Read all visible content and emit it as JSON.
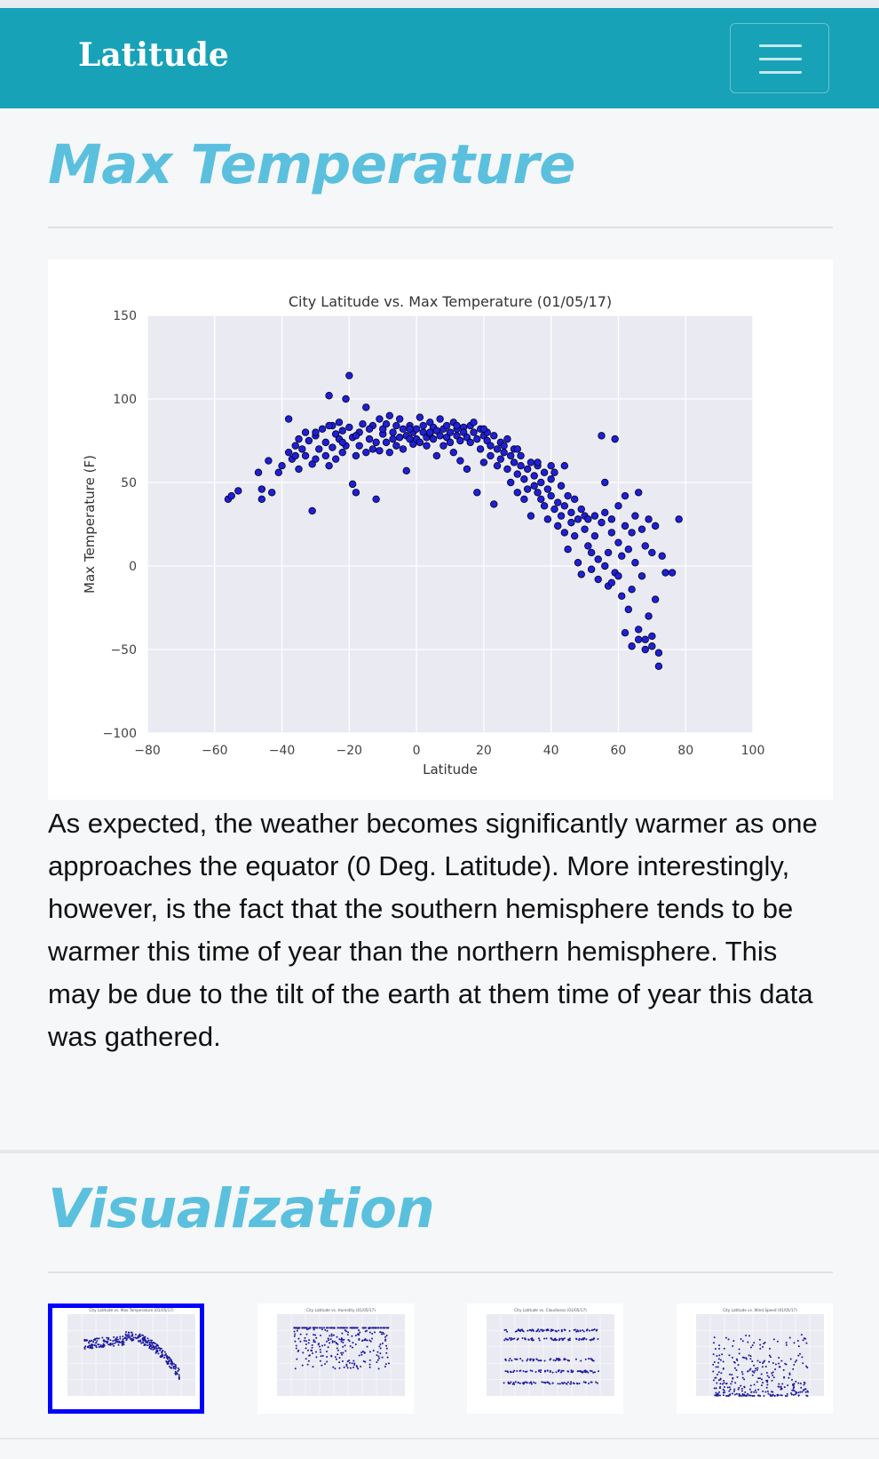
{
  "navbar": {
    "brand": "Latitude",
    "menu_icon": "hamburger-menu-icon"
  },
  "section1": {
    "title": "Max Temperature",
    "description": "As expected, the weather becomes significantly warmer as one approaches the equator (0 Deg. Latitude). More interestingly, however, is the fact that the southern hemisphere tends to be warmer this time of year than the northern hemisphere. This may be due to the tilt of the earth at them time of year this data was gathered."
  },
  "section2": {
    "title": "Visualization",
    "thumbnails": [
      {
        "title": "City Latitude vs. Max Temperature (01/05/17)",
        "selected": true
      },
      {
        "title": "City Latitude vs. Humidity (01/05/17)",
        "selected": false
      },
      {
        "title": "City Latitude vs. Cloudiness (01/05/17)",
        "selected": false
      },
      {
        "title": "City Latitude vs. Wind Speed (01/05/17)",
        "selected": false
      }
    ]
  },
  "colors": {
    "navbar": "#17a2b8",
    "title": "#5bc0de",
    "plot_bg": "#eaeaf2",
    "marker": "#1f1fd6",
    "selected_outline": "#0000ff"
  },
  "chart_data": {
    "type": "scatter",
    "title": "City Latitude vs. Max Temperature (01/05/17)",
    "xlabel": "Latitude",
    "ylabel": "Max Temperature (F)",
    "xlim": [
      -80,
      100
    ],
    "ylim": [
      -100,
      150
    ],
    "xticks": [
      -80,
      -60,
      -40,
      -20,
      0,
      20,
      40,
      60,
      80,
      100
    ],
    "yticks": [
      -100,
      -50,
      0,
      50,
      100,
      150
    ],
    "grid": true,
    "points": [
      [
        -56,
        40
      ],
      [
        -55,
        42
      ],
      [
        -53,
        45
      ],
      [
        -47,
        56
      ],
      [
        -46,
        46
      ],
      [
        -46,
        40
      ],
      [
        -44,
        63
      ],
      [
        -43,
        44
      ],
      [
        -41,
        56
      ],
      [
        -40,
        60
      ],
      [
        -38,
        68
      ],
      [
        -38,
        88
      ],
      [
        -37,
        64
      ],
      [
        -36,
        72
      ],
      [
        -35,
        76
      ],
      [
        -35,
        58
      ],
      [
        -34,
        70
      ],
      [
        -33,
        66
      ],
      [
        -33,
        80
      ],
      [
        -32,
        75
      ],
      [
        -31,
        61
      ],
      [
        -31,
        33
      ],
      [
        -30,
        64
      ],
      [
        -30,
        78
      ],
      [
        -29,
        70
      ],
      [
        -28,
        82
      ],
      [
        -27,
        74
      ],
      [
        -27,
        66
      ],
      [
        -26,
        102
      ],
      [
        -26,
        60
      ],
      [
        -25,
        84
      ],
      [
        -25,
        71
      ],
      [
        -24,
        79
      ],
      [
        -24,
        64
      ],
      [
        -23,
        86
      ],
      [
        -23,
        76
      ],
      [
        -22,
        81
      ],
      [
        -22,
        68
      ],
      [
        -21,
        100
      ],
      [
        -21,
        72
      ],
      [
        -20,
        114
      ],
      [
        -20,
        83
      ],
      [
        -19,
        77
      ],
      [
        -19,
        49
      ],
      [
        -18,
        66
      ],
      [
        -18,
        44
      ],
      [
        -17,
        80
      ],
      [
        -17,
        72
      ],
      [
        -16,
        85
      ],
      [
        -15,
        68
      ],
      [
        -15,
        95
      ],
      [
        -14,
        76
      ],
      [
        -13,
        70
      ],
      [
        -13,
        84
      ],
      [
        -12,
        74
      ],
      [
        -12,
        40
      ],
      [
        -11,
        88
      ],
      [
        -11,
        69
      ],
      [
        -10,
        79
      ],
      [
        -10,
        82
      ],
      [
        -9,
        74
      ],
      [
        -9,
        85
      ],
      [
        -8,
        68
      ],
      [
        -8,
        90
      ],
      [
        -7,
        80
      ],
      [
        -7,
        76
      ],
      [
        -6,
        84
      ],
      [
        -6,
        72
      ],
      [
        -5,
        77
      ],
      [
        -5,
        88
      ],
      [
        -4,
        82
      ],
      [
        -4,
        70
      ],
      [
        -3,
        78
      ],
      [
        -3,
        57
      ],
      [
        -2,
        84
      ],
      [
        -2,
        76
      ],
      [
        -1,
        80
      ],
      [
        -1,
        73
      ],
      [
        0,
        82
      ],
      [
        0,
        76
      ],
      [
        1,
        89
      ],
      [
        1,
        74
      ],
      [
        2,
        80
      ],
      [
        2,
        84
      ],
      [
        3,
        77
      ],
      [
        3,
        72
      ],
      [
        4,
        86
      ],
      [
        4,
        79
      ],
      [
        5,
        83
      ],
      [
        5,
        76
      ],
      [
        6,
        81
      ],
      [
        6,
        66
      ],
      [
        7,
        88
      ],
      [
        7,
        78
      ],
      [
        8,
        82
      ],
      [
        8,
        72
      ],
      [
        9,
        84
      ],
      [
        9,
        77
      ],
      [
        10,
        80
      ],
      [
        10,
        74
      ],
      [
        11,
        86
      ],
      [
        11,
        68
      ],
      [
        12,
        78
      ],
      [
        12,
        82
      ],
      [
        13,
        75
      ],
      [
        13,
        63
      ],
      [
        14,
        83
      ],
      [
        14,
        80
      ],
      [
        15,
        77
      ],
      [
        15,
        58
      ],
      [
        16,
        84
      ],
      [
        16,
        74
      ],
      [
        17,
        80
      ],
      [
        17,
        86
      ],
      [
        18,
        76
      ],
      [
        18,
        44
      ],
      [
        19,
        82
      ],
      [
        19,
        70
      ],
      [
        20,
        78
      ],
      [
        20,
        62
      ],
      [
        21,
        75
      ],
      [
        21,
        80
      ],
      [
        22,
        72
      ],
      [
        22,
        66
      ],
      [
        23,
        78
      ],
      [
        23,
        37
      ],
      [
        24,
        70
      ],
      [
        24,
        60
      ],
      [
        25,
        74
      ],
      [
        25,
        64
      ],
      [
        26,
        68
      ],
      [
        26,
        72
      ],
      [
        27,
        58
      ],
      [
        27,
        76
      ],
      [
        28,
        66
      ],
      [
        28,
        50
      ],
      [
        29,
        62
      ],
      [
        29,
        70
      ],
      [
        30,
        55
      ],
      [
        30,
        44
      ],
      [
        31,
        60
      ],
      [
        31,
        66
      ],
      [
        32,
        52
      ],
      [
        32,
        40
      ],
      [
        33,
        58
      ],
      [
        33,
        46
      ],
      [
        34,
        62
      ],
      [
        34,
        30
      ],
      [
        35,
        54
      ],
      [
        35,
        48
      ],
      [
        36,
        44
      ],
      [
        36,
        60
      ],
      [
        37,
        40
      ],
      [
        37,
        50
      ],
      [
        38,
        56
      ],
      [
        38,
        36
      ],
      [
        39,
        46
      ],
      [
        39,
        28
      ],
      [
        40,
        52
      ],
      [
        40,
        42
      ],
      [
        41,
        34
      ],
      [
        41,
        56
      ],
      [
        42,
        24
      ],
      [
        42,
        38
      ],
      [
        43,
        30
      ],
      [
        43,
        48
      ],
      [
        44,
        20
      ],
      [
        44,
        36
      ],
      [
        45,
        42
      ],
      [
        45,
        10
      ],
      [
        46,
        26
      ],
      [
        46,
        32
      ],
      [
        47,
        18
      ],
      [
        47,
        40
      ],
      [
        48,
        2
      ],
      [
        48,
        28
      ],
      [
        49,
        34
      ],
      [
        49,
        -5
      ],
      [
        50,
        22
      ],
      [
        50,
        30
      ],
      [
        51,
        12
      ],
      [
        51,
        28
      ],
      [
        52,
        -2
      ],
      [
        52,
        8
      ],
      [
        53,
        30
      ],
      [
        53,
        18
      ],
      [
        54,
        4
      ],
      [
        54,
        -8
      ],
      [
        55,
        78
      ],
      [
        55,
        26
      ],
      [
        56,
        0
      ],
      [
        56,
        32
      ],
      [
        57,
        8
      ],
      [
        57,
        -12
      ],
      [
        58,
        28
      ],
      [
        58,
        20
      ],
      [
        59,
        76
      ],
      [
        59,
        -4
      ],
      [
        60,
        14
      ],
      [
        60,
        36
      ],
      [
        61,
        6
      ],
      [
        61,
        -18
      ],
      [
        62,
        24
      ],
      [
        62,
        42
      ],
      [
        63,
        -26
      ],
      [
        63,
        10
      ],
      [
        64,
        20
      ],
      [
        64,
        -14
      ],
      [
        65,
        30
      ],
      [
        65,
        2
      ],
      [
        66,
        -38
      ],
      [
        66,
        44
      ],
      [
        67,
        22
      ],
      [
        67,
        -6
      ],
      [
        68,
        -44
      ],
      [
        68,
        12
      ],
      [
        69,
        28
      ],
      [
        69,
        -30
      ],
      [
        70,
        8
      ],
      [
        70,
        -48
      ],
      [
        71,
        -20
      ],
      [
        71,
        24
      ],
      [
        72,
        -52
      ],
      [
        72,
        -60
      ],
      [
        73,
        6
      ],
      [
        74,
        -4
      ],
      [
        76,
        -4
      ],
      [
        78,
        28
      ],
      [
        56,
        50
      ],
      [
        58,
        -10
      ],
      [
        60,
        -6
      ],
      [
        62,
        -40
      ],
      [
        64,
        -48
      ],
      [
        66,
        -44
      ],
      [
        68,
        -50
      ],
      [
        70,
        -42
      ],
      [
        44,
        60
      ],
      [
        40,
        60
      ],
      [
        36,
        62
      ],
      [
        30,
        70
      ],
      [
        -36,
        66
      ],
      [
        -30,
        80
      ],
      [
        -26,
        84
      ],
      [
        -22,
        74
      ],
      [
        -18,
        78
      ],
      [
        -14,
        82
      ],
      [
        -2,
        82
      ],
      [
        4,
        80
      ],
      [
        12,
        84
      ],
      [
        20,
        82
      ]
    ]
  }
}
